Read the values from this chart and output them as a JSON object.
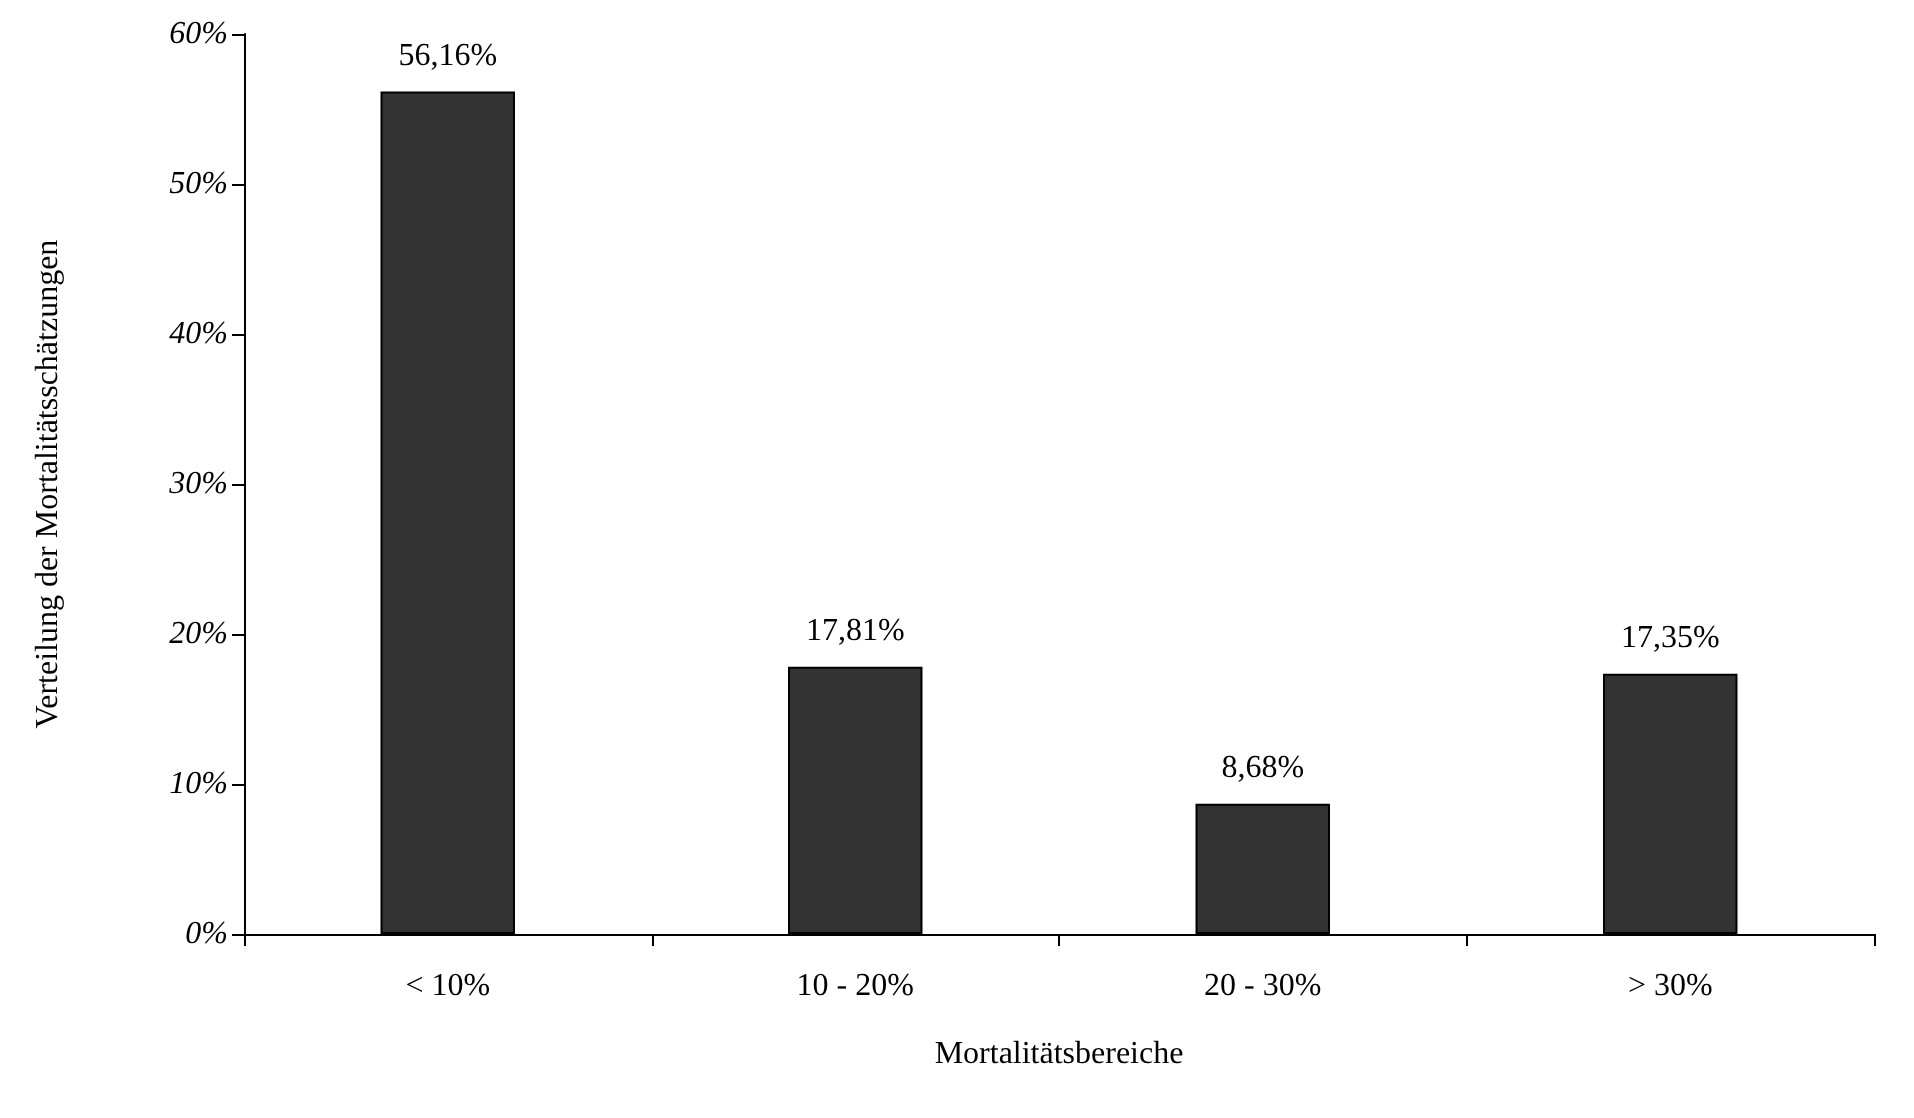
{
  "chart_data": {
    "type": "bar",
    "xlabel": "Mortalitätsbereiche",
    "ylabel": "Verteilung der Mortalitätsschätzungen",
    "categories": [
      "< 10%",
      "10 - 20%",
      "20 - 30%",
      "> 30%"
    ],
    "values": [
      56.16,
      17.81,
      8.68,
      17.35
    ],
    "value_labels": [
      "56,16%",
      "17,81%",
      "8,68%",
      "17,35%"
    ],
    "color": "#333333",
    "ylim": [
      0,
      60
    ],
    "yticks": [
      {
        "value": 0,
        "label": "0%"
      },
      {
        "value": 10,
        "label": "10%"
      },
      {
        "value": 20,
        "label": "20%"
      },
      {
        "value": 30,
        "label": "30%"
      },
      {
        "value": 40,
        "label": "40%"
      },
      {
        "value": 50,
        "label": "50%"
      },
      {
        "value": 60,
        "label": "60%"
      }
    ],
    "grid": false
  }
}
